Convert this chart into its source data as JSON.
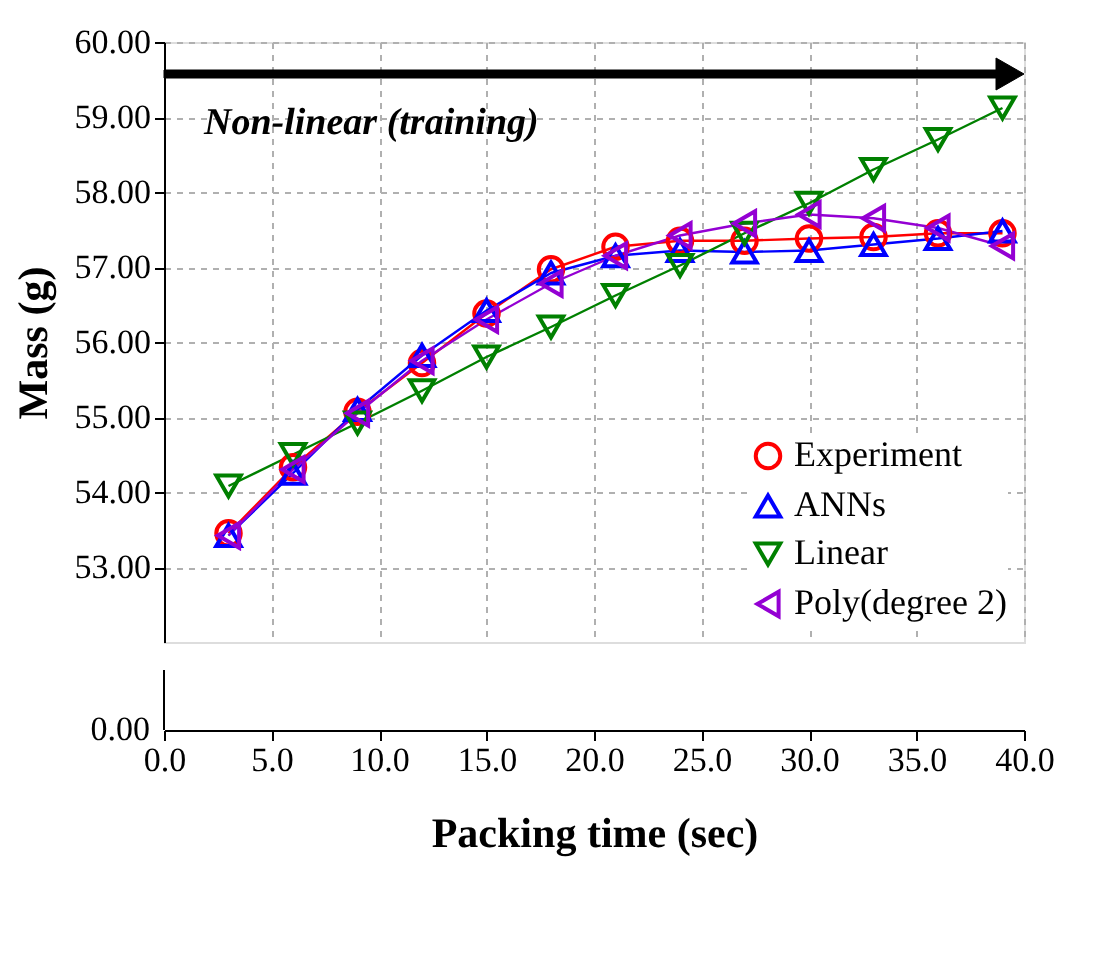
{
  "chart_data": {
    "type": "line",
    "xlabel": "Packing time (sec)",
    "ylabel": "Mass (g)",
    "annotations": [
      "Non-linear (training)",
      "0.00"
    ],
    "x": [
      3,
      6,
      9,
      12,
      15,
      18,
      21,
      24,
      27,
      30,
      33,
      36,
      39
    ],
    "xlim": [
      0,
      40
    ],
    "xticks": [
      {
        "value": 0,
        "label": "0.0"
      },
      {
        "value": 5,
        "label": "5.0"
      },
      {
        "value": 10,
        "label": "10.0"
      },
      {
        "value": 15,
        "label": "15.0"
      },
      {
        "value": 20,
        "label": "20.0"
      },
      {
        "value": 25,
        "label": "25.0"
      },
      {
        "value": 30,
        "label": "30.0"
      },
      {
        "value": 35,
        "label": "35.0"
      },
      {
        "value": 40,
        "label": "40.0"
      }
    ],
    "ylim": [
      52,
      60
    ],
    "yticks": [
      {
        "value": 53,
        "label": "53.00"
      },
      {
        "value": 54,
        "label": "54.00"
      },
      {
        "value": 55,
        "label": "55.00"
      },
      {
        "value": 56,
        "label": "56.00"
      },
      {
        "value": 57,
        "label": "57.00"
      },
      {
        "value": 58,
        "label": "58.00"
      },
      {
        "value": 59,
        "label": "59.00"
      },
      {
        "value": 60,
        "label": "60.00"
      }
    ],
    "grid": true,
    "legend": "bottom right",
    "line_style": "solid",
    "series": [
      {
        "name": "Experiment",
        "color": "#ff0000",
        "marker": "circle",
        "values": [
          53.45,
          54.33,
          55.07,
          55.72,
          56.38,
          56.97,
          57.27,
          57.35,
          57.35,
          57.38,
          57.4,
          57.45,
          57.45
        ]
      },
      {
        "name": "ANNs",
        "color": "#0000ff",
        "marker": "triangle",
        "values": [
          53.42,
          54.25,
          55.1,
          55.82,
          56.42,
          56.92,
          57.15,
          57.22,
          57.2,
          57.22,
          57.3,
          57.38,
          57.48
        ]
      },
      {
        "name": "Linear",
        "color": "#008000",
        "marker": "triangle-down",
        "values": [
          54.08,
          54.5,
          54.92,
          55.35,
          55.8,
          56.2,
          56.62,
          57.02,
          57.45,
          57.85,
          58.3,
          58.7,
          59.12
        ]
      },
      {
        "name": "Poly(degree 2)",
        "color": "#9400d3",
        "marker": "triangle-left",
        "values": [
          53.42,
          54.3,
          55.05,
          55.75,
          56.3,
          56.78,
          57.15,
          57.42,
          57.58,
          57.7,
          57.65,
          57.52,
          57.28
        ]
      }
    ]
  }
}
